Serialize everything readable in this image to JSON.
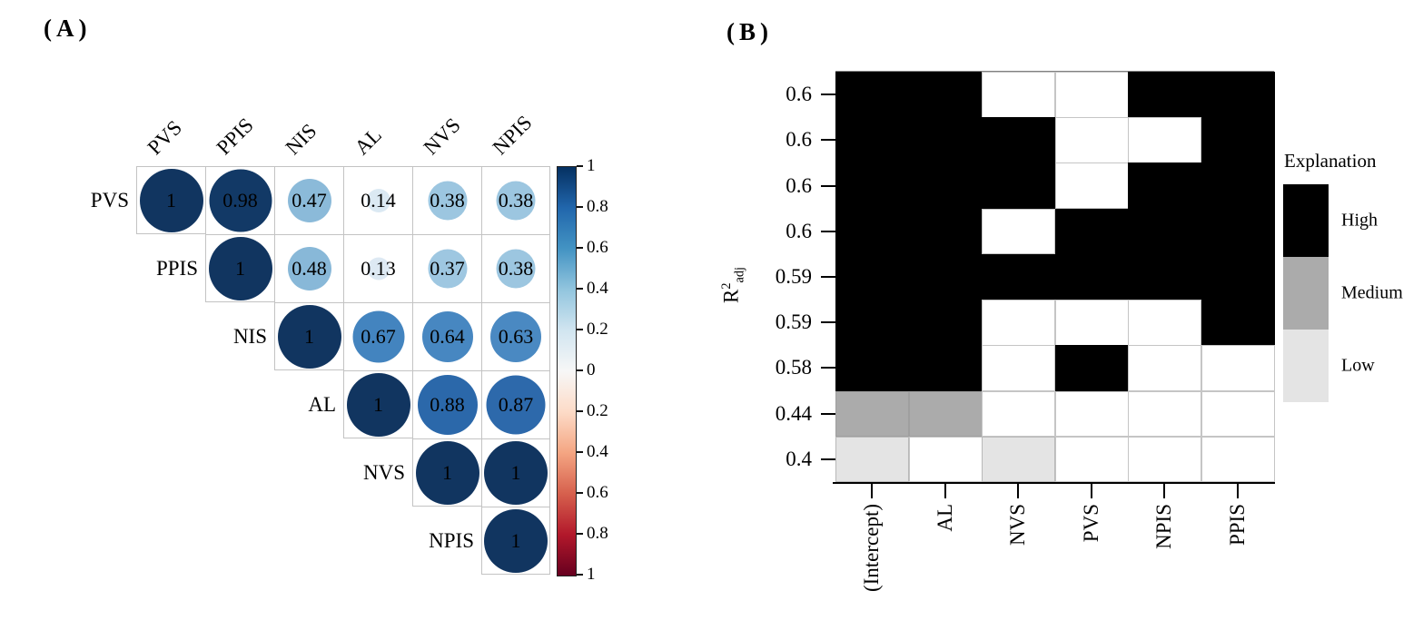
{
  "panelA": {
    "label": "(A)",
    "variables": [
      "PVS",
      "PPIS",
      "NIS",
      "AL",
      "NVS",
      "NPIS"
    ],
    "matrix_display": [
      [
        "1",
        "0.98",
        "0.47",
        "0.14",
        "0.38",
        "0.38"
      ],
      [
        "1",
        "0.48",
        "0.13",
        "0.37",
        "0.38"
      ],
      [
        "1",
        "0.67",
        "0.64",
        "0.63"
      ],
      [
        "1",
        "0.88",
        "0.87"
      ],
      [
        "1",
        "1"
      ],
      [
        "1"
      ]
    ],
    "value_colors": {
      "1": "#113560",
      "0.98": "#123966",
      "0.88": "#2b68aa",
      "0.87": "#2d69ab",
      "0.67": "#4384bf",
      "0.64": "#4787c1",
      "0.63": "#4a89c2",
      "0.48": "#88b8d8",
      "0.47": "#8bbad9",
      "0.38": "#9cc6e0",
      "0.37": "#9ec7e1",
      "0.14": "#dbe9f3",
      "0.13": "#dde9f3"
    },
    "grid_color": "#c3c3c3",
    "colorbar": {
      "tick_labels": [
        "1",
        "0.8",
        "0.6",
        "0.4",
        "0.2",
        "0",
        "0.2",
        "0.4",
        "0.6",
        "0.8",
        "1"
      ],
      "gradient": [
        "#053061",
        "#2166ac",
        "#4393c3",
        "#92c5de",
        "#d1e5f0",
        "#f7f7f7",
        "#fddbc7",
        "#f4a582",
        "#d6604d",
        "#b2182b",
        "#67001f"
      ]
    }
  },
  "panelB": {
    "label": "(B)",
    "y_axis_label": {
      "base": "R",
      "sup": "2",
      "sub": "adj"
    },
    "y_tick_labels": [
      "0.6",
      "0.6",
      "0.6",
      "0.6",
      "0.59",
      "0.59",
      "0.58",
      "0.44",
      "0.4"
    ],
    "x_labels": [
      "(Intercept)",
      "AL",
      "NVS",
      "PVS",
      "NPIS",
      "PPIS"
    ],
    "grid": [
      [
        "H",
        "H",
        "W",
        "W",
        "H",
        "H"
      ],
      [
        "H",
        "H",
        "H",
        "W",
        "W",
        "H"
      ],
      [
        "H",
        "H",
        "H",
        "W",
        "H",
        "H"
      ],
      [
        "H",
        "H",
        "W",
        "H",
        "H",
        "H"
      ],
      [
        "H",
        "H",
        "H",
        "H",
        "H",
        "H"
      ],
      [
        "H",
        "H",
        "W",
        "W",
        "W",
        "H"
      ],
      [
        "H",
        "H",
        "W",
        "H",
        "W",
        "W"
      ],
      [
        "M",
        "M",
        "W",
        "W",
        "W",
        "W"
      ],
      [
        "L",
        "W",
        "L",
        "W",
        "W",
        "W"
      ]
    ],
    "cell_colors": {
      "H": "#000000",
      "M": "#ababab",
      "L": "#e4e4e4",
      "W": "#ffffff"
    },
    "legend": {
      "title": "Explanation",
      "items": [
        {
          "label": "High",
          "color": "#000000"
        },
        {
          "label": "Medium",
          "color": "#ababab"
        },
        {
          "label": "Low",
          "color": "#e4e4e4"
        }
      ]
    }
  },
  "chart_data": [
    {
      "type": "heatmap",
      "title": "(A) Correlation matrix, upper triangle, circle size and color scaled to r",
      "variables": [
        "PVS",
        "PPIS",
        "NIS",
        "AL",
        "NVS",
        "NPIS"
      ],
      "matrix_upper": [
        [
          1,
          0.98,
          0.47,
          0.14,
          0.38,
          0.38
        ],
        [
          1,
          0.48,
          0.13,
          0.37,
          0.38
        ],
        [
          1,
          0.67,
          0.64,
          0.63
        ],
        [
          1,
          0.88,
          0.87
        ],
        [
          1,
          1
        ],
        [
          1
        ]
      ],
      "colorbar_range": [
        -1,
        1
      ],
      "colorbar_ticks": [
        1,
        0.8,
        0.6,
        0.4,
        0.2,
        0,
        -0.2,
        -0.4,
        -0.6,
        -0.8,
        -1
      ],
      "legend_position": "right"
    },
    {
      "type": "heatmap",
      "title": "(B) Model explanation levels by term",
      "ylabel": "R2_adj",
      "rows": [
        0.6,
        0.6,
        0.6,
        0.6,
        0.59,
        0.59,
        0.58,
        0.44,
        0.4
      ],
      "columns": [
        "(Intercept)",
        "AL",
        "NVS",
        "PVS",
        "NPIS",
        "PPIS"
      ],
      "values": [
        [
          "High",
          "High",
          "",
          "",
          "High",
          "High"
        ],
        [
          "High",
          "High",
          "High",
          "",
          "",
          "High"
        ],
        [
          "High",
          "High",
          "High",
          "",
          "High",
          "High"
        ],
        [
          "High",
          "High",
          "",
          "High",
          "High",
          "High"
        ],
        [
          "High",
          "High",
          "High",
          "High",
          "High",
          "High"
        ],
        [
          "High",
          "High",
          "",
          "",
          "",
          "High"
        ],
        [
          "High",
          "High",
          "",
          "High",
          "",
          ""
        ],
        [
          "Medium",
          "Medium",
          "",
          "",
          "",
          ""
        ],
        [
          "Low",
          "",
          "Low",
          "",
          "",
          ""
        ]
      ],
      "legend_title": "Explanation",
      "legend_entries": [
        "High",
        "Medium",
        "Low"
      ],
      "legend_position": "right"
    }
  ]
}
